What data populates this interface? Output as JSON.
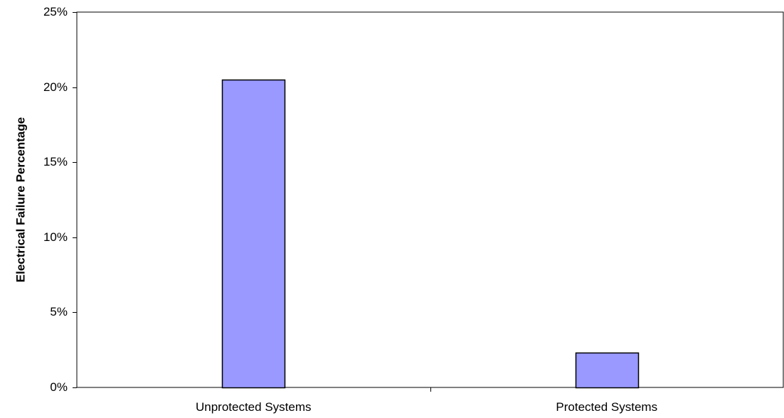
{
  "chart_data": {
    "type": "bar",
    "title": "",
    "xlabel": "",
    "ylabel": "Electrical Failure Percentage",
    "categories": [
      "Unprotected Systems",
      "Protected Systems"
    ],
    "values": [
      20.5,
      2.3
    ],
    "value_format": "percent",
    "ylim": [
      0,
      25
    ],
    "yticks": [
      0,
      5,
      10,
      15,
      20,
      25
    ],
    "ytick_labels": [
      "0%",
      "5%",
      "10%",
      "15%",
      "20%",
      "25%"
    ],
    "grid": false,
    "legend": "none",
    "colors": {
      "bar_fill": "#9999ff",
      "bar_stroke": "#000000",
      "axis": "#000000",
      "background": "#ffffff"
    }
  }
}
